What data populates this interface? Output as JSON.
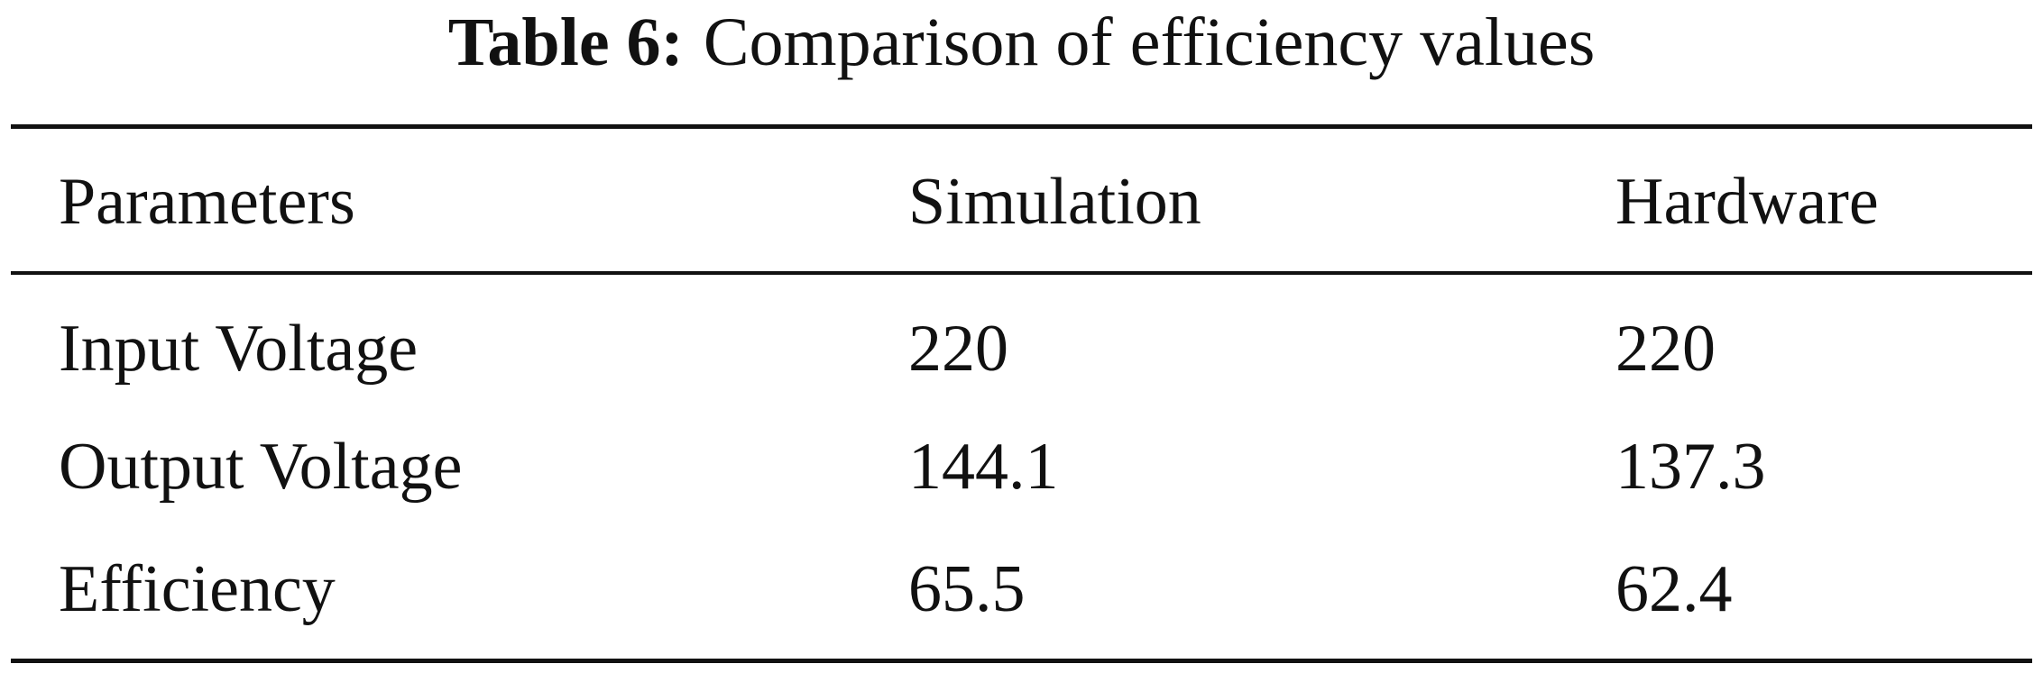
{
  "caption": {
    "label": "Table 6:",
    "text": "Comparison of efficiency values"
  },
  "table": {
    "header": [
      "Parameters",
      "Simulation",
      "Hardware"
    ],
    "rows": [
      [
        "Input Voltage",
        "220",
        "220"
      ],
      [
        "Output Voltage",
        "144.1",
        "137.3"
      ],
      [
        "Efficiency",
        "65.5",
        "62.4"
      ]
    ]
  }
}
